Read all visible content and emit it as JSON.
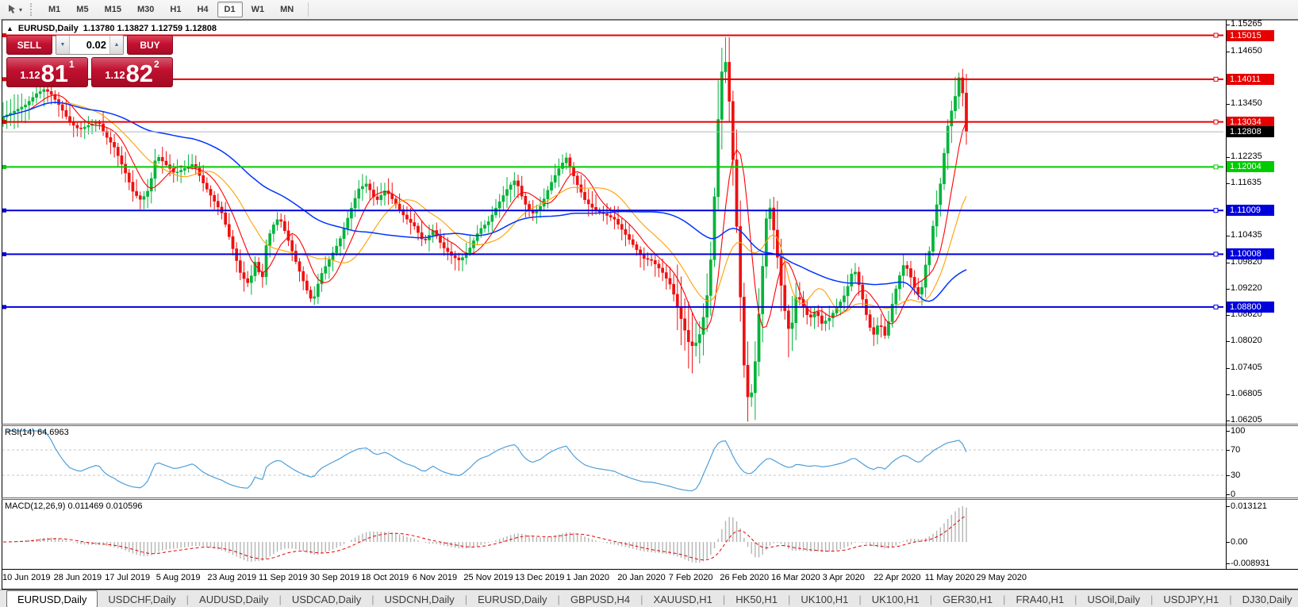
{
  "toolbar": {
    "tool_icon": "chart-cursor",
    "dropdown_icon": "▾",
    "timeframes": [
      "M1",
      "M5",
      "M15",
      "M30",
      "H1",
      "H4",
      "D1",
      "W1",
      "MN"
    ],
    "active_timeframe": "D1"
  },
  "window": {
    "collapse_icon": "▲",
    "title_symbol": "EURUSD,Daily",
    "title_ohlc": "1.13780 1.13827 1.12759 1.12808"
  },
  "trade_panel": {
    "sell_label": "SELL",
    "buy_label": "BUY",
    "volume": "0.02",
    "spin_down_icon": "▼",
    "spin_up_icon": "▲",
    "sell_price": {
      "small": "1.12",
      "big": "81",
      "sup": "1"
    },
    "buy_price": {
      "small": "1.12",
      "big": "82",
      "sup": "2"
    }
  },
  "price_axis": {
    "ticks": [
      "1.15265",
      "1.14650",
      "1.13450",
      "1.12235",
      "1.11635",
      "1.10435",
      "1.09820",
      "1.09220",
      "1.08620",
      "1.08020",
      "1.07405",
      "1.06805",
      "1.06205"
    ],
    "current_price": "1.12808",
    "current_bg": "#000000"
  },
  "hlines": [
    {
      "price": "1.15015",
      "color": "#e60000"
    },
    {
      "price": "1.14011",
      "color": "#e60000"
    },
    {
      "price": "1.13034",
      "color": "#e60000"
    },
    {
      "price": "1.12004",
      "color": "#00cc00"
    },
    {
      "price": "1.11009",
      "color": "#0000dd"
    },
    {
      "price": "1.10008",
      "color": "#0000dd"
    },
    {
      "price": "1.08800",
      "color": "#0000dd"
    }
  ],
  "rsi_panel": {
    "label": "RSI(14) 64.6963",
    "value": "64.6963",
    "period": 14,
    "scale": [
      "100",
      "70",
      "30",
      "0"
    ],
    "levels": [
      70,
      30
    ],
    "line_color": "#4f9fd8"
  },
  "macd_panel": {
    "label": "MACD(12,26,9) 0.011469 0.010596",
    "values": [
      "0.011469",
      "0.010596"
    ],
    "scale": [
      "0.013121",
      "0.00",
      "-0.008931"
    ],
    "histogram_color": "#b4b4b4",
    "signal_color": "#e60000"
  },
  "dates": [
    "10 Jun 2019",
    "28 Jun 2019",
    "17 Jul 2019",
    "5 Aug 2019",
    "23 Aug 2019",
    "11 Sep 2019",
    "30 Sep 2019",
    "18 Oct 2019",
    "6 Nov 2019",
    "25 Nov 2019",
    "13 Dec 2019",
    "1 Jan 2020",
    "20 Jan 2020",
    "7 Feb 2020",
    "26 Feb 2020",
    "16 Mar 2020",
    "3 Apr 2020",
    "22 Apr 2020",
    "11 May 2020",
    "29 May 2020"
  ],
  "tabs": {
    "items": [
      "EURUSD,Daily",
      "USDCHF,Daily",
      "AUDUSD,Daily",
      "USDCAD,Daily",
      "USDCNH,Daily",
      "EURUSD,Daily",
      "GBPUSD,H4",
      "XAUUSD,H1",
      "HK50,H1",
      "UK100,H1",
      "UK100,H1",
      "GER30,H1",
      "FRA40,H1",
      "USOil,Daily",
      "USDJPY,H1",
      "DJ30,Daily"
    ],
    "active_index": 0,
    "scroll_left_icon": "◂",
    "scroll_right_icon": "▸"
  },
  "chart_data": {
    "type": "candlestick",
    "symbol": "EURUSD",
    "timeframe": "Daily",
    "ohlc_display": {
      "open": "1.13780",
      "high": "1.13827",
      "low": "1.12759",
      "close": "1.12808"
    },
    "bid": 1.12808,
    "price_range_visible": [
      1.06205,
      1.15265
    ],
    "up_color": "#00b43a",
    "down_color": "#ee1111",
    "bid_line_color": "#b8b8b8",
    "moving_averages": [
      {
        "period": 8,
        "color": "#ff0000"
      },
      {
        "period": 17,
        "color": "#ffa000"
      },
      {
        "period": 52,
        "color": "#0033ff"
      }
    ],
    "candle_count": 261,
    "price_path_anchors": [
      [
        4,
        1.1315
      ],
      [
        18,
        1.1328
      ],
      [
        32,
        1.1342
      ],
      [
        46,
        1.1368
      ],
      [
        56,
        1.1378
      ],
      [
        64,
        1.1368
      ],
      [
        76,
        1.1338
      ],
      [
        88,
        1.1302
      ],
      [
        100,
        1.1286
      ],
      [
        112,
        1.1296
      ],
      [
        124,
        1.1304
      ],
      [
        133,
        1.1272
      ],
      [
        144,
        1.1246
      ],
      [
        156,
        1.1196
      ],
      [
        168,
        1.1142
      ],
      [
        178,
        1.1124
      ],
      [
        188,
        1.115
      ],
      [
        197,
        1.1228
      ],
      [
        208,
        1.1208
      ],
      [
        220,
        1.1186
      ],
      [
        232,
        1.1196
      ],
      [
        244,
        1.1208
      ],
      [
        256,
        1.1164
      ],
      [
        268,
        1.1128
      ],
      [
        280,
        1.1094
      ],
      [
        292,
        1.1022
      ],
      [
        304,
        1.0952
      ],
      [
        314,
        1.0932
      ],
      [
        322,
        1.0986
      ],
      [
        330,
        1.0936
      ],
      [
        336,
        1.1028
      ],
      [
        344,
        1.1066
      ],
      [
        352,
        1.1086
      ],
      [
        362,
        1.104
      ],
      [
        374,
        1.0978
      ],
      [
        386,
        1.0922
      ],
      [
        394,
        1.089
      ],
      [
        404,
        1.0952
      ],
      [
        416,
        1.0992
      ],
      [
        428,
        1.1032
      ],
      [
        440,
        1.1092
      ],
      [
        452,
        1.115
      ],
      [
        462,
        1.1162
      ],
      [
        474,
        1.1122
      ],
      [
        486,
        1.1148
      ],
      [
        498,
        1.1118
      ],
      [
        510,
        1.1086
      ],
      [
        522,
        1.1066
      ],
      [
        534,
        1.1028
      ],
      [
        546,
        1.1056
      ],
      [
        558,
        1.1018
      ],
      [
        570,
        1.0996
      ],
      [
        580,
        1.0986
      ],
      [
        592,
        1.1014
      ],
      [
        604,
        1.1056
      ],
      [
        616,
        1.1076
      ],
      [
        628,
        1.1116
      ],
      [
        640,
        1.1152
      ],
      [
        650,
        1.1172
      ],
      [
        660,
        1.1122
      ],
      [
        670,
        1.1092
      ],
      [
        682,
        1.1112
      ],
      [
        694,
        1.1162
      ],
      [
        706,
        1.1202
      ],
      [
        714,
        1.1222
      ],
      [
        726,
        1.1166
      ],
      [
        738,
        1.1122
      ],
      [
        750,
        1.1102
      ],
      [
        762,
        1.1092
      ],
      [
        774,
        1.1082
      ],
      [
        786,
        1.1052
      ],
      [
        798,
        1.1022
      ],
      [
        810,
        1.0992
      ],
      [
        822,
        1.0986
      ],
      [
        834,
        1.0962
      ],
      [
        846,
        1.0928
      ],
      [
        858,
        1.0856
      ],
      [
        870,
        1.0788
      ],
      [
        880,
        1.0802
      ],
      [
        890,
        1.0886
      ],
      [
        898,
        1.1026
      ],
      [
        904,
        1.1282
      ],
      [
        910,
        1.1422
      ],
      [
        915,
        1.1442
      ],
      [
        920,
        1.1332
      ],
      [
        926,
        1.1152
      ],
      [
        932,
        1.0942
      ],
      [
        938,
        1.0742
      ],
      [
        944,
        1.0652
      ],
      [
        950,
        1.0712
      ],
      [
        956,
        1.0852
      ],
      [
        962,
        1.0992
      ],
      [
        968,
        1.1132
      ],
      [
        974,
        1.1072
      ],
      [
        980,
        1.0992
      ],
      [
        988,
        1.0882
      ],
      [
        996,
        1.0812
      ],
      [
        1004,
        1.0912
      ],
      [
        1012,
        1.0882
      ],
      [
        1020,
        1.0852
      ],
      [
        1028,
        1.0872
      ],
      [
        1036,
        1.0842
      ],
      [
        1046,
        1.0856
      ],
      [
        1056,
        1.0882
      ],
      [
        1066,
        1.0912
      ],
      [
        1076,
        1.0972
      ],
      [
        1084,
        1.0922
      ],
      [
        1092,
        1.0862
      ],
      [
        1100,
        1.0812
      ],
      [
        1108,
        1.0846
      ],
      [
        1116,
        1.0812
      ],
      [
        1124,
        1.0882
      ],
      [
        1132,
        1.0942
      ],
      [
        1140,
        1.0982
      ],
      [
        1148,
        1.0948
      ],
      [
        1154,
        1.0918
      ],
      [
        1160,
        1.0902
      ],
      [
        1166,
        1.0972
      ],
      [
        1172,
        1.1012
      ],
      [
        1178,
        1.1092
      ],
      [
        1184,
        1.1142
      ],
      [
        1190,
        1.1232
      ],
      [
        1196,
        1.1312
      ],
      [
        1202,
        1.1342
      ],
      [
        1207,
        1.1392
      ],
      [
        1211,
        1.1422
      ],
      [
        1215,
        1.1332
      ],
      [
        1218,
        1.1281
      ]
    ]
  }
}
